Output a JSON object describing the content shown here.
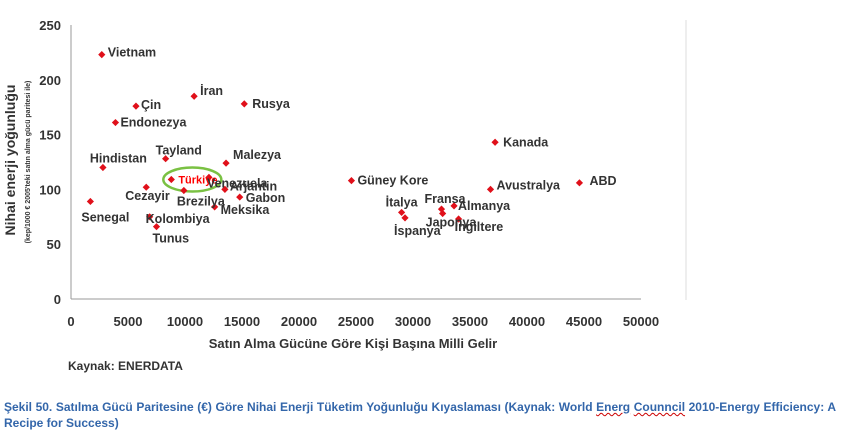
{
  "chart_data": {
    "type": "scatter",
    "title": "",
    "xlabel": "Satın Alma Gücüne Göre Kişi Başına Milli Gelir",
    "ylabel": "Nihai enerji yoğunluğu",
    "ylabel_sub": "(kep/1000 €  2005'teki satın alma gücü paritesi ile)",
    "xlim": [
      0,
      50000
    ],
    "ylim": [
      0,
      250
    ],
    "xticks": [
      "0",
      "5000",
      "10000",
      "15000",
      "20000",
      "25000",
      "30000",
      "35000",
      "40000",
      "45000",
      "50000"
    ],
    "yticks": [
      "0",
      "50",
      "100",
      "150",
      "200",
      "250"
    ],
    "grid": false,
    "marker_color": "#e0101a",
    "highlight_color": "#7ac143",
    "points": [
      {
        "label": "Vietnam",
        "x": 2700,
        "y": 223
      },
      {
        "label": "İran",
        "x": 10800,
        "y": 185
      },
      {
        "label": "Çin",
        "x": 5700,
        "y": 176
      },
      {
        "label": "Rusya",
        "x": 15200,
        "y": 178
      },
      {
        "label": "Endonezya",
        "x": 3900,
        "y": 161
      },
      {
        "label": "Hindistan",
        "x": 2800,
        "y": 120
      },
      {
        "label": "Tayland",
        "x": 8300,
        "y": 128
      },
      {
        "label": "Malezya",
        "x": 13600,
        "y": 124
      },
      {
        "label": "Türkiye",
        "x": 8800,
        "y": 109,
        "highlight": true
      },
      {
        "label": "Venezuela",
        "x": 12100,
        "y": 111
      },
      {
        "label": "Arjantin",
        "x": 13500,
        "y": 100
      },
      {
        "label": "Cezayir",
        "x": 6600,
        "y": 102
      },
      {
        "label": "Brezilya",
        "x": 9900,
        "y": 99
      },
      {
        "label": "Gabon",
        "x": 14800,
        "y": 93
      },
      {
        "label": "Senegal",
        "x": 1700,
        "y": 89
      },
      {
        "label": "Meksika",
        "x": 12600,
        "y": 84
      },
      {
        "label": "Kolombiya",
        "x": 6900,
        "y": 75
      },
      {
        "label": "Tunus",
        "x": 7500,
        "y": 66
      },
      {
        "label": "Güney Kore",
        "x": 24600,
        "y": 108
      },
      {
        "label": "İtalya",
        "x": 29000,
        "y": 79
      },
      {
        "label": "İspanya",
        "x": 29300,
        "y": 74
      },
      {
        "label": "Fransa",
        "x": 32500,
        "y": 82
      },
      {
        "label": "Japonya",
        "x": 32600,
        "y": 78
      },
      {
        "label": "Almanya",
        "x": 33600,
        "y": 85
      },
      {
        "label": "İngiltere",
        "x": 34000,
        "y": 73
      },
      {
        "label": "Kanada",
        "x": 37200,
        "y": 143
      },
      {
        "label": "Avustralya",
        "x": 36800,
        "y": 100
      },
      {
        "label": "ABD",
        "x": 44600,
        "y": 106
      }
    ]
  },
  "source": "Kaynak: ENERDATA",
  "caption": {
    "prefix": "Şekil 50. Satılma Gücü Paritesine (€) Göre Nihai Enerji Tüketim Yoğunluğu Kıyaslaması (Kaynak: World ",
    "misspelled_1": "Energ",
    "middle": " ",
    "misspelled_2": "Counncil",
    "suffix": " 2010-Energy Efficiency: A Recipe for Success)"
  }
}
